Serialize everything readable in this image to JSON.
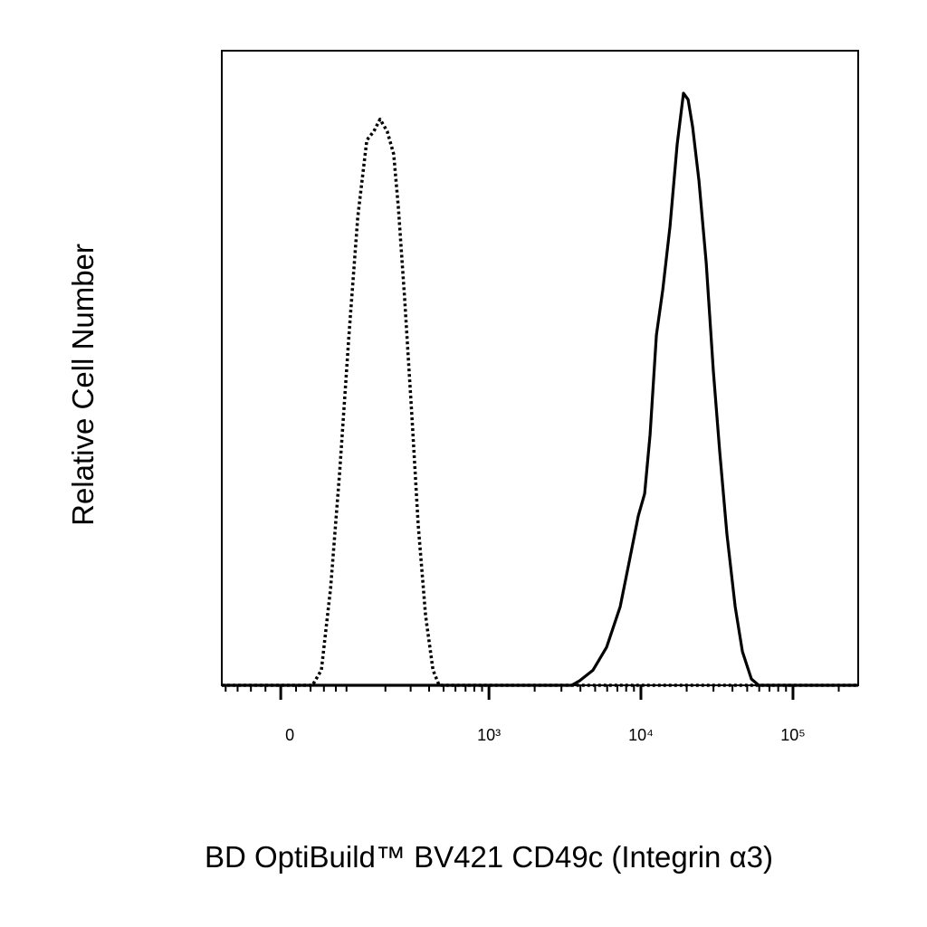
{
  "chart_data": {
    "type": "line",
    "xlabel": "BD OptiBuild™ BV421 CD49c (Integrin α3)",
    "ylabel": "Relative Cell Number",
    "xscale": "biexponential",
    "xlim": [
      -87,
      268500
    ],
    "ylim": [
      0,
      100
    ],
    "xticks": [
      0,
      {
        "value": 1000,
        "label": "10³"
      },
      {
        "value": 10000,
        "label": "10⁴"
      },
      {
        "value": 100000,
        "label": "10⁵"
      }
    ],
    "xminorticks": [
      -80,
      -60,
      -40,
      -20,
      20,
      40,
      60,
      80,
      100,
      200,
      300,
      400,
      500,
      600,
      700,
      800,
      900,
      2000,
      3000,
      4000,
      5000,
      6000,
      7000,
      8000,
      9000,
      20000,
      30000,
      40000,
      50000,
      60000,
      70000,
      80000,
      90000,
      200000
    ],
    "series": [
      {
        "color": "#000000",
        "style": "dotted",
        "x": [
          -87,
          42.6,
          56,
          71,
          87,
          105,
          124,
          146,
          165,
          183,
          206,
          229,
          247,
          273,
          306,
          338,
          379,
          425,
          467,
          268500
        ],
        "values": [
          0,
          0,
          2.4,
          15.3,
          33.8,
          55.2,
          73.8,
          85.9,
          87.3,
          89.2,
          87.3,
          83.7,
          75.2,
          60.9,
          42.4,
          25.2,
          11.0,
          2.4,
          0,
          0
        ]
      },
      {
        "color": "#000000",
        "style": "solid",
        "x": [
          -87,
          3500,
          3942,
          4845,
          5949,
          7305,
          8380,
          9610,
          10580,
          11485,
          12640,
          13910,
          15530,
          17320,
          19060,
          20420,
          21870,
          24070,
          26860,
          29970,
          32990,
          36810,
          41660,
          46480,
          53300,
          59490,
          268500
        ],
        "values": [
          0,
          0,
          0.7,
          2.4,
          6.0,
          12.4,
          19.5,
          26.7,
          30.2,
          39.5,
          55.2,
          62.3,
          72.3,
          85.2,
          93.3,
          92.3,
          88.0,
          79.5,
          66.6,
          49.5,
          36.7,
          23.8,
          12.4,
          5.3,
          1.0,
          0,
          0
        ]
      }
    ]
  }
}
